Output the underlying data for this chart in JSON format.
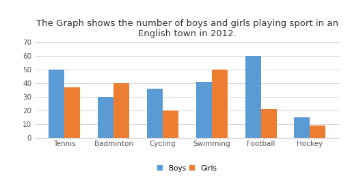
{
  "title": "The Graph shows the number of boys and girls playing sport in an\nEnglish town in 2012.",
  "categories": [
    "Tennis",
    "Badminton",
    "Cycling",
    "Swimming",
    "Football",
    "Hockey"
  ],
  "boys": [
    50,
    30,
    36,
    41,
    60,
    15
  ],
  "girls": [
    37,
    40,
    20,
    50,
    21,
    9
  ],
  "boys_color": "#5B9BD5",
  "girls_color": "#ED7D31",
  "ylim": [
    0,
    70
  ],
  "yticks": [
    0,
    10,
    20,
    30,
    40,
    50,
    60,
    70
  ],
  "bar_width": 0.32,
  "legend_labels": [
    "Boys",
    "Girls"
  ],
  "background_color": "#ffffff",
  "title_fontsize": 9.5,
  "tick_fontsize": 7.5,
  "legend_fontsize": 7.5,
  "grid_color": "#D0D0D0"
}
